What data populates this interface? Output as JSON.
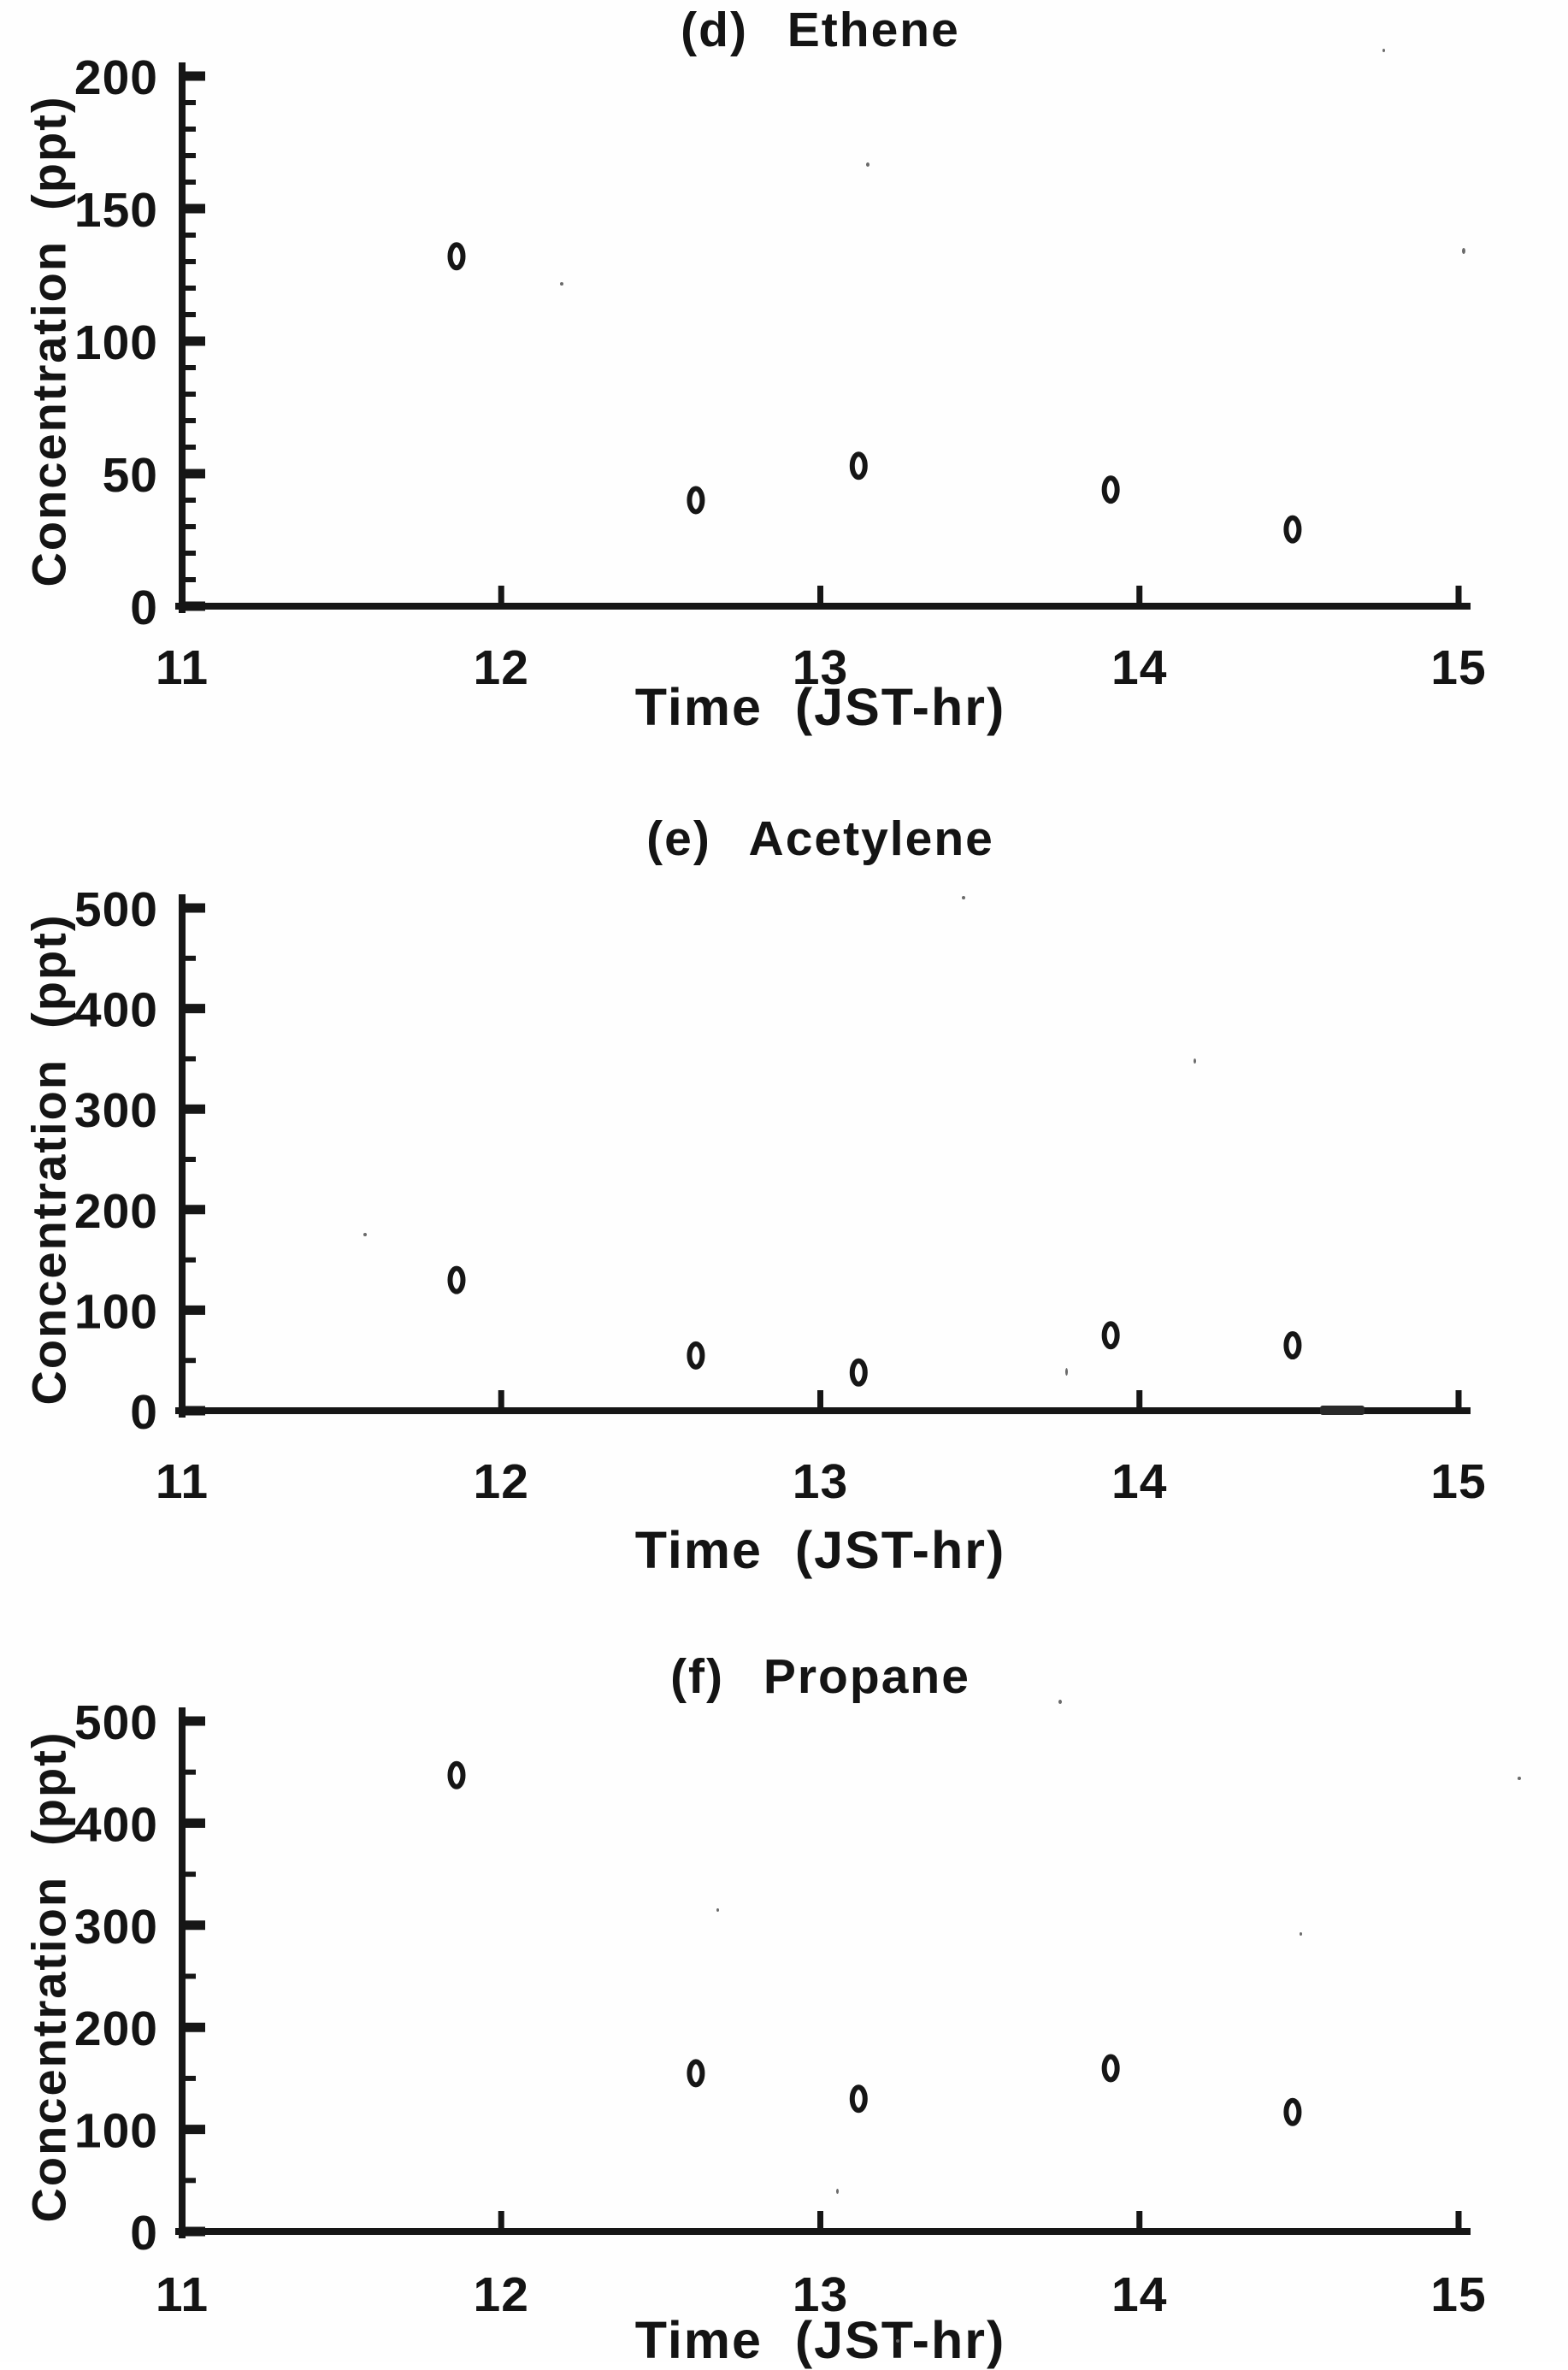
{
  "colors": {
    "ink": "#161616",
    "paper": "#ffffff"
  },
  "chart_data": [
    {
      "id": "d",
      "type": "scatter",
      "title": "(d) Ethene",
      "xlabel": "Time  (JST-hr)",
      "ylabel": "Concentration  (ppt)",
      "xlim": [
        11,
        15
      ],
      "ylim": [
        0,
        200
      ],
      "x_major_ticks": [
        11,
        12,
        13,
        14,
        15
      ],
      "y_major_ticks": [
        0,
        50,
        100,
        150,
        200
      ],
      "y_minor_step": 10,
      "grid": false,
      "legend": false,
      "marker": "small-open-oval",
      "points": [
        {
          "x": 11.86,
          "y": 132
        },
        {
          "x": 12.61,
          "y": 40
        },
        {
          "x": 13.12,
          "y": 53
        },
        {
          "x": 13.91,
          "y": 44
        },
        {
          "x": 14.48,
          "y": 29
        }
      ]
    },
    {
      "id": "e",
      "type": "scatter",
      "title": "(e) Acetylene",
      "xlabel": "Time  (JST-hr)",
      "ylabel": "Concentration  (ppt)",
      "xlim": [
        11,
        15
      ],
      "ylim": [
        0,
        500
      ],
      "x_major_ticks": [
        11,
        12,
        13,
        14,
        15
      ],
      "y_major_ticks": [
        0,
        100,
        200,
        300,
        400,
        500
      ],
      "y_minor_step": 50,
      "grid": false,
      "legend": false,
      "marker": "small-open-oval",
      "points": [
        {
          "x": 11.86,
          "y": 130
        },
        {
          "x": 12.61,
          "y": 55
        },
        {
          "x": 13.12,
          "y": 38
        },
        {
          "x": 13.91,
          "y": 75
        },
        {
          "x": 14.48,
          "y": 65
        }
      ]
    },
    {
      "id": "f",
      "type": "scatter",
      "title": "(f) Propane",
      "xlabel": "Time  (JST-hr)",
      "ylabel": "Concentration  (ppt)",
      "xlim": [
        11,
        15
      ],
      "ylim": [
        0,
        500
      ],
      "x_major_ticks": [
        11,
        12,
        13,
        14,
        15
      ],
      "y_major_ticks": [
        0,
        100,
        200,
        300,
        400,
        500
      ],
      "y_minor_step": 50,
      "grid": false,
      "legend": false,
      "marker": "small-open-oval",
      "points": [
        {
          "x": 11.86,
          "y": 447
        },
        {
          "x": 12.61,
          "y": 155
        },
        {
          "x": 13.12,
          "y": 130
        },
        {
          "x": 13.91,
          "y": 160
        },
        {
          "x": 14.48,
          "y": 117
        }
      ]
    }
  ]
}
